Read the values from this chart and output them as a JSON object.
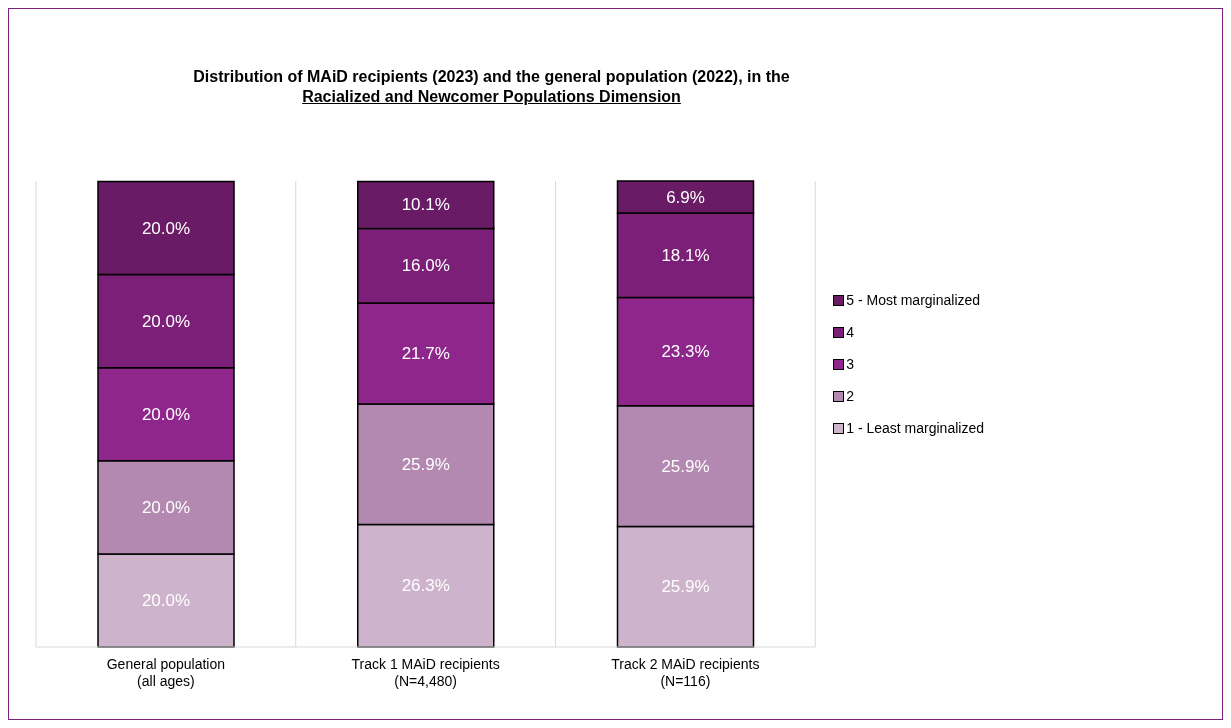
{
  "chart_data": {
    "type": "bar",
    "title": "Distribution of MAiD recipients (2023) and the general population (2022), in the\nRacialized and Newcomer Populations Dimension",
    "categories": [
      "General population\n(all ages)",
      "Track 1 MAiD recipients\n(N=4,480)",
      "Track 2 MAiD recipients\n(N=116)"
    ],
    "stacked": true,
    "grid": "x",
    "legend": "right",
    "tick_labels": "x",
    "series": [
      {
        "name": "1 - Least marginalized",
        "color": "#cdb4cc",
        "values": [
          20.0,
          26.3,
          25.9
        ],
        "value_labels": [
          "20.0%",
          "26.3%",
          "25.9%"
        ]
      },
      {
        "name": "2",
        "color": "#b389b1",
        "values": [
          20.0,
          25.9,
          25.9
        ],
        "value_labels": [
          "20.0%",
          "25.9%",
          "25.9%"
        ]
      },
      {
        "name": "3",
        "color": "#8e268b",
        "values": [
          20.0,
          21.7,
          23.3
        ],
        "value_labels": [
          "20.0%",
          "21.7%",
          "23.3%"
        ]
      },
      {
        "name": "4",
        "color": "#7c1f79",
        "values": [
          20.0,
          16.0,
          18.1
        ],
        "value_labels": [
          "20.0%",
          "16.0%",
          "18.1%"
        ]
      },
      {
        "name": "5 - Most marginalized",
        "color": "#6a1b66",
        "values": [
          20.0,
          10.1,
          6.9
        ],
        "value_labels": [
          "20.0%",
          "10.1%",
          "6.9%"
        ]
      }
    ]
  }
}
